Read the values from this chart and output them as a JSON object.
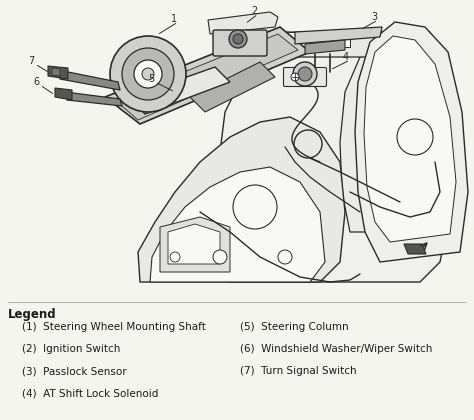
{
  "background_color": "#f5f5f0",
  "legend_title": "Legend",
  "legend_items_left": [
    "(1)  Steering Wheel Mounting Shaft",
    "(2)  Ignition Switch",
    "(3)  Passlock Sensor",
    "(4)  AT Shift Lock Solenoid"
  ],
  "legend_items_right": [
    "(5)  Steering Column",
    "(6)  Windshield Washer/Wiper Switch",
    "(7)  Turn Signal Switch"
  ],
  "fig_width": 4.74,
  "fig_height": 4.2,
  "dpi": 100,
  "line_color": "#2a2a2a",
  "fill_light": "#e8e8e4",
  "fill_mid": "#d0d0cc",
  "fill_dark": "#b0b0ac",
  "fill_white": "#f8f8f6"
}
